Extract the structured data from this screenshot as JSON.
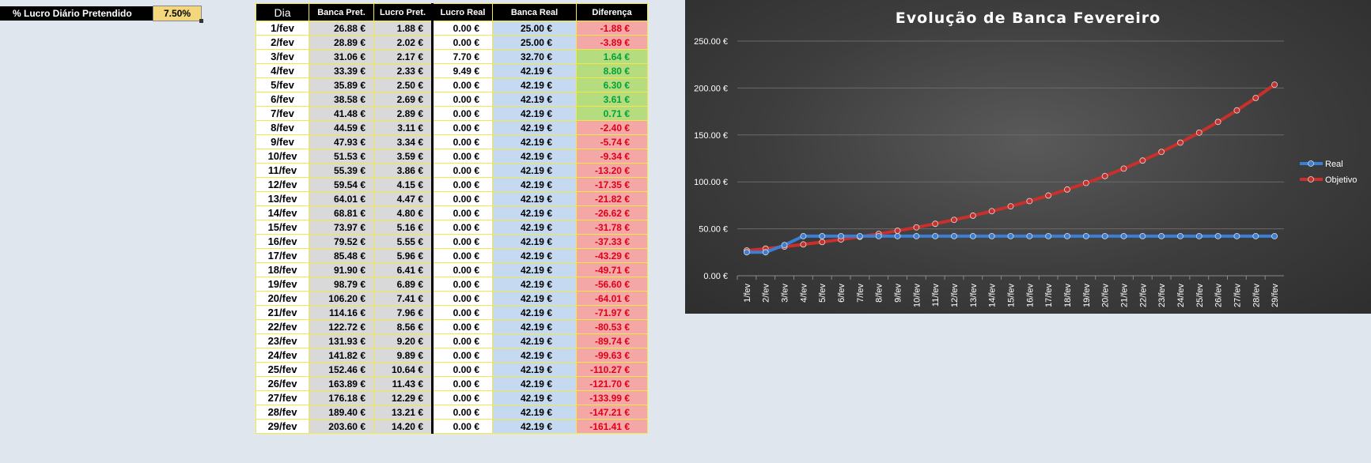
{
  "header": {
    "label": "% Lucro Diário Pretendido",
    "value": "7.50%"
  },
  "table": {
    "columns": [
      "Dia",
      "Banca Pret.",
      "Lucro Pret.",
      "Lucro Real",
      "Banca Real",
      "Diferença"
    ],
    "rows": [
      [
        "1/fev",
        "26.88 €",
        "1.88 €",
        "0.00 €",
        "25.00 €",
        "-1.88 €"
      ],
      [
        "2/fev",
        "28.89 €",
        "2.02 €",
        "0.00 €",
        "25.00 €",
        "-3.89 €"
      ],
      [
        "3/fev",
        "31.06 €",
        "2.17 €",
        "7.70 €",
        "32.70 €",
        "1.64 €"
      ],
      [
        "4/fev",
        "33.39 €",
        "2.33 €",
        "9.49 €",
        "42.19 €",
        "8.80 €"
      ],
      [
        "5/fev",
        "35.89 €",
        "2.50 €",
        "0.00 €",
        "42.19 €",
        "6.30 €"
      ],
      [
        "6/fev",
        "38.58 €",
        "2.69 €",
        "0.00 €",
        "42.19 €",
        "3.61 €"
      ],
      [
        "7/fev",
        "41.48 €",
        "2.89 €",
        "0.00 €",
        "42.19 €",
        "0.71 €"
      ],
      [
        "8/fev",
        "44.59 €",
        "3.11 €",
        "0.00 €",
        "42.19 €",
        "-2.40 €"
      ],
      [
        "9/fev",
        "47.93 €",
        "3.34 €",
        "0.00 €",
        "42.19 €",
        "-5.74 €"
      ],
      [
        "10/fev",
        "51.53 €",
        "3.59 €",
        "0.00 €",
        "42.19 €",
        "-9.34 €"
      ],
      [
        "11/fev",
        "55.39 €",
        "3.86 €",
        "0.00 €",
        "42.19 €",
        "-13.20 €"
      ],
      [
        "12/fev",
        "59.54 €",
        "4.15 €",
        "0.00 €",
        "42.19 €",
        "-17.35 €"
      ],
      [
        "13/fev",
        "64.01 €",
        "4.47 €",
        "0.00 €",
        "42.19 €",
        "-21.82 €"
      ],
      [
        "14/fev",
        "68.81 €",
        "4.80 €",
        "0.00 €",
        "42.19 €",
        "-26.62 €"
      ],
      [
        "15/fev",
        "73.97 €",
        "5.16 €",
        "0.00 €",
        "42.19 €",
        "-31.78 €"
      ],
      [
        "16/fev",
        "79.52 €",
        "5.55 €",
        "0.00 €",
        "42.19 €",
        "-37.33 €"
      ],
      [
        "17/fev",
        "85.48 €",
        "5.96 €",
        "0.00 €",
        "42.19 €",
        "-43.29 €"
      ],
      [
        "18/fev",
        "91.90 €",
        "6.41 €",
        "0.00 €",
        "42.19 €",
        "-49.71 €"
      ],
      [
        "19/fev",
        "98.79 €",
        "6.89 €",
        "0.00 €",
        "42.19 €",
        "-56.60 €"
      ],
      [
        "20/fev",
        "106.20 €",
        "7.41 €",
        "0.00 €",
        "42.19 €",
        "-64.01 €"
      ],
      [
        "21/fev",
        "114.16 €",
        "7.96 €",
        "0.00 €",
        "42.19 €",
        "-71.97 €"
      ],
      [
        "22/fev",
        "122.72 €",
        "8.56 €",
        "0.00 €",
        "42.19 €",
        "-80.53 €"
      ],
      [
        "23/fev",
        "131.93 €",
        "9.20 €",
        "0.00 €",
        "42.19 €",
        "-89.74 €"
      ],
      [
        "24/fev",
        "141.82 €",
        "9.89 €",
        "0.00 €",
        "42.19 €",
        "-99.63 €"
      ],
      [
        "25/fev",
        "152.46 €",
        "10.64 €",
        "0.00 €",
        "42.19 €",
        "-110.27 €"
      ],
      [
        "26/fev",
        "163.89 €",
        "11.43 €",
        "0.00 €",
        "42.19 €",
        "-121.70 €"
      ],
      [
        "27/fev",
        "176.18 €",
        "12.29 €",
        "0.00 €",
        "42.19 €",
        "-133.99 €"
      ],
      [
        "28/fev",
        "189.40 €",
        "13.21 €",
        "0.00 €",
        "42.19 €",
        "-147.21 €"
      ],
      [
        "29/fev",
        "203.60 €",
        "14.20 €",
        "0.00 €",
        "42.19 €",
        "-161.41 €"
      ]
    ]
  },
  "colors": {
    "positive": "#00a33a",
    "negative": "#e0001a",
    "real_line": "#3a7fd5",
    "objetivo_line": "#c9302c"
  },
  "chart_data": {
    "type": "line",
    "title": "Evolução de Banca Fevereiro",
    "categories": [
      "1/fev",
      "2/fev",
      "3/fev",
      "4/fev",
      "5/fev",
      "6/fev",
      "7/fev",
      "8/fev",
      "9/fev",
      "10/fev",
      "11/fev",
      "12/fev",
      "13/fev",
      "14/fev",
      "15/fev",
      "16/fev",
      "17/fev",
      "18/fev",
      "19/fev",
      "20/fev",
      "21/fev",
      "22/fev",
      "23/fev",
      "24/fev",
      "25/fev",
      "26/fev",
      "27/fev",
      "28/fev",
      "29/fev"
    ],
    "yticks": [
      "0.00 €",
      "50.00 €",
      "100.00 €",
      "150.00 €",
      "200.00 €",
      "250.00 €"
    ],
    "ylim": [
      0,
      250
    ],
    "grid": true,
    "legend_position": "right",
    "series": [
      {
        "name": "Real",
        "values": [
          25.0,
          25.0,
          32.7,
          42.19,
          42.19,
          42.19,
          42.19,
          42.19,
          42.19,
          42.19,
          42.19,
          42.19,
          42.19,
          42.19,
          42.19,
          42.19,
          42.19,
          42.19,
          42.19,
          42.19,
          42.19,
          42.19,
          42.19,
          42.19,
          42.19,
          42.19,
          42.19,
          42.19,
          42.19
        ]
      },
      {
        "name": "Objetivo",
        "values": [
          26.88,
          28.89,
          31.06,
          33.39,
          35.89,
          38.58,
          41.48,
          44.59,
          47.93,
          51.53,
          55.39,
          59.54,
          64.01,
          68.81,
          73.97,
          79.52,
          85.48,
          91.9,
          98.79,
          106.2,
          114.16,
          122.72,
          131.93,
          141.82,
          152.46,
          163.89,
          176.18,
          189.4,
          203.6
        ]
      }
    ]
  }
}
